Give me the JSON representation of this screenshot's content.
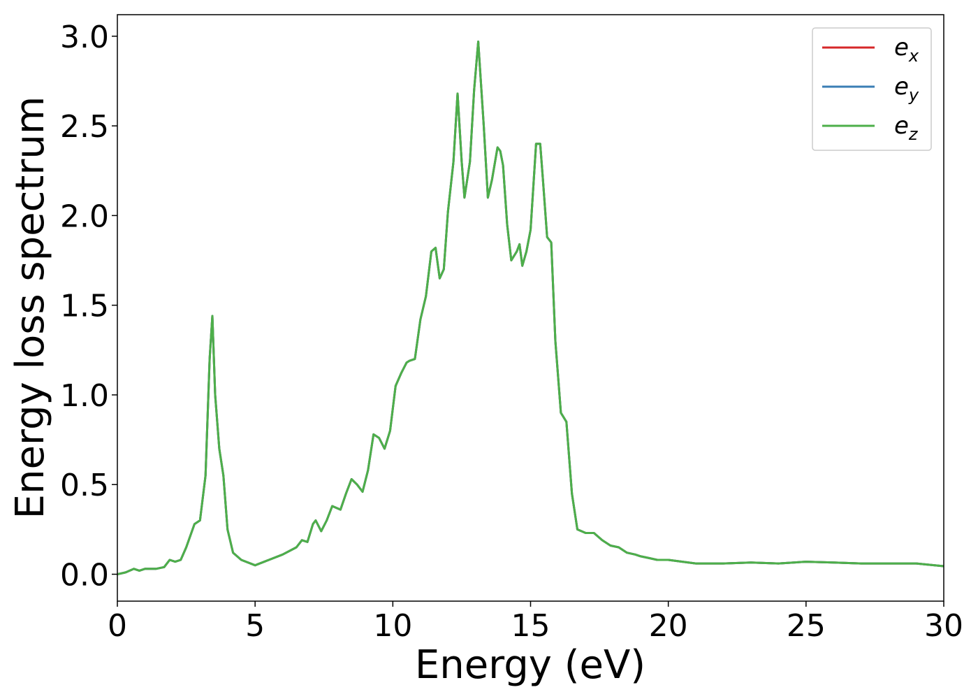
{
  "chart_data": {
    "type": "line",
    "title": "",
    "xlabel": "Energy (eV)",
    "ylabel": "Energy loss spectrum",
    "xlim": [
      0,
      30
    ],
    "ylim": [
      -0.15,
      3.12
    ],
    "xticks": [
      "0",
      "5",
      "10",
      "15",
      "20",
      "25",
      "30"
    ],
    "yticks": [
      "0.0",
      "0.5",
      "1.0",
      "1.5",
      "2.0",
      "2.5",
      "3.0"
    ],
    "grid": false,
    "legend_position": "top-right",
    "colors": {
      "ex": "#d62728",
      "ey": "#3a7eb4",
      "ez": "#4daf4a"
    },
    "series": [
      {
        "name": "e",
        "subscript": "x",
        "color_key": "ex"
      },
      {
        "name": "e",
        "subscript": "y",
        "color_key": "ey"
      },
      {
        "name": "e",
        "subscript": "z",
        "color_key": "ez"
      }
    ],
    "x": [
      0,
      0.3,
      0.6,
      0.8,
      1.0,
      1.4,
      1.7,
      1.9,
      2.1,
      2.3,
      2.5,
      2.8,
      3.0,
      3.2,
      3.35,
      3.45,
      3.55,
      3.7,
      3.85,
      4.0,
      4.2,
      4.5,
      5.0,
      5.5,
      6.0,
      6.5,
      6.7,
      6.9,
      7.1,
      7.2,
      7.4,
      7.6,
      7.8,
      8.1,
      8.3,
      8.5,
      8.7,
      8.9,
      9.1,
      9.3,
      9.5,
      9.7,
      9.9,
      10.1,
      10.3,
      10.5,
      10.6,
      10.8,
      11.0,
      11.2,
      11.4,
      11.55,
      11.7,
      11.85,
      12.0,
      12.2,
      12.35,
      12.5,
      12.6,
      12.8,
      12.95,
      13.1,
      13.3,
      13.45,
      13.6,
      13.8,
      13.9,
      14.0,
      14.15,
      14.3,
      14.5,
      14.6,
      14.7,
      14.85,
      15.0,
      15.2,
      15.35,
      15.45,
      15.6,
      15.75,
      15.9,
      16.1,
      16.3,
      16.5,
      16.7,
      17.0,
      17.3,
      17.6,
      17.9,
      18.2,
      18.5,
      18.8,
      19.0,
      19.3,
      19.6,
      20.0,
      21.0,
      22.0,
      23.0,
      24.0,
      25.0,
      26.0,
      27.0,
      28.0,
      29.0,
      30.0
    ],
    "y": [
      0.0,
      0.01,
      0.03,
      0.02,
      0.03,
      0.03,
      0.04,
      0.08,
      0.07,
      0.08,
      0.15,
      0.28,
      0.3,
      0.55,
      1.2,
      1.44,
      1.0,
      0.7,
      0.55,
      0.25,
      0.12,
      0.08,
      0.05,
      0.08,
      0.11,
      0.15,
      0.19,
      0.18,
      0.28,
      0.3,
      0.24,
      0.3,
      0.38,
      0.36,
      0.45,
      0.53,
      0.5,
      0.46,
      0.58,
      0.78,
      0.76,
      0.7,
      0.8,
      1.05,
      1.12,
      1.18,
      1.19,
      1.2,
      1.42,
      1.55,
      1.8,
      1.82,
      1.65,
      1.7,
      2.02,
      2.3,
      2.68,
      2.3,
      2.1,
      2.3,
      2.7,
      2.97,
      2.5,
      2.1,
      2.2,
      2.38,
      2.36,
      2.28,
      1.95,
      1.75,
      1.8,
      1.84,
      1.72,
      1.8,
      1.92,
      2.4,
      2.4,
      2.2,
      1.88,
      1.85,
      1.3,
      0.9,
      0.85,
      0.45,
      0.25,
      0.23,
      0.23,
      0.19,
      0.16,
      0.15,
      0.12,
      0.11,
      0.1,
      0.09,
      0.08,
      0.08,
      0.06,
      0.06,
      0.065,
      0.06,
      0.07,
      0.065,
      0.06,
      0.06,
      0.06,
      0.045
    ]
  }
}
